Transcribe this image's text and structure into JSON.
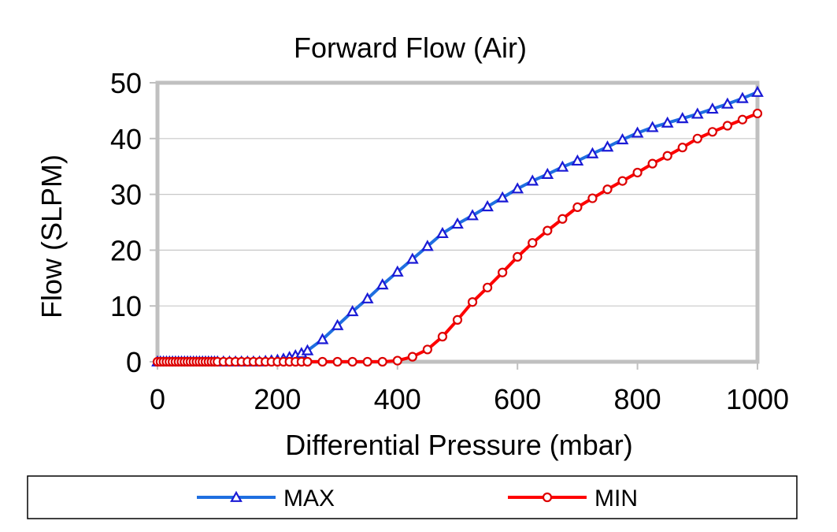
{
  "chart_data": {
    "type": "line",
    "title": "Forward Flow (Air)",
    "xlabel": "Differential Pressure (mbar)",
    "ylabel": "Flow (SLPM)",
    "xlim": [
      0,
      1000
    ],
    "ylim": [
      0,
      50
    ],
    "xticks": [
      "0",
      "200",
      "400",
      "600",
      "800",
      "1000"
    ],
    "yticks": [
      "0",
      "10",
      "20",
      "30",
      "40",
      "50"
    ],
    "grid": true,
    "legend_position": "bottom",
    "series": [
      {
        "name": "MAX",
        "color": "#1f6fe0",
        "marker": "triangle",
        "marker_color": "#1a1ad6",
        "x": [
          0,
          5,
          10,
          15,
          20,
          25,
          30,
          35,
          40,
          45,
          50,
          55,
          60,
          65,
          70,
          75,
          80,
          85,
          90,
          95,
          100,
          110,
          120,
          130,
          140,
          150,
          160,
          170,
          180,
          190,
          200,
          210,
          220,
          230,
          240,
          250,
          275,
          300,
          325,
          350,
          375,
          400,
          425,
          450,
          475,
          500,
          525,
          550,
          575,
          600,
          625,
          650,
          675,
          700,
          725,
          750,
          775,
          800,
          825,
          850,
          875,
          900,
          925,
          950,
          975,
          1000
        ],
        "y": [
          0,
          0,
          0,
          0,
          0,
          0,
          0,
          0,
          0,
          0,
          0,
          0,
          0,
          0,
          0,
          0,
          0,
          0,
          0,
          0,
          0,
          0,
          0,
          0,
          0,
          0,
          0,
          0,
          0.1,
          0.2,
          0.3,
          0.5,
          0.8,
          1.1,
          1.5,
          2.0,
          4.0,
          6.5,
          9.0,
          11.3,
          13.8,
          16.1,
          18.4,
          20.7,
          23.0,
          24.7,
          26.2,
          27.8,
          29.4,
          31.0,
          32.4,
          33.6,
          34.9,
          36.0,
          37.3,
          38.5,
          39.8,
          41.0,
          42.0,
          42.8,
          43.6,
          44.4,
          45.3,
          46.2,
          47.2,
          48.3
        ]
      },
      {
        "name": "MIN",
        "color": "#ff0000",
        "marker": "circle",
        "marker_color": "#dd0000",
        "x": [
          0,
          5,
          10,
          15,
          20,
          25,
          30,
          35,
          40,
          45,
          50,
          55,
          60,
          65,
          70,
          75,
          80,
          85,
          90,
          95,
          100,
          110,
          120,
          130,
          140,
          150,
          160,
          170,
          180,
          190,
          200,
          210,
          220,
          230,
          240,
          250,
          275,
          300,
          325,
          350,
          375,
          400,
          425,
          450,
          475,
          500,
          525,
          550,
          575,
          600,
          625,
          650,
          675,
          700,
          725,
          750,
          775,
          800,
          825,
          850,
          875,
          900,
          925,
          950,
          975,
          1000
        ],
        "y": [
          0,
          0,
          0,
          0,
          0,
          0,
          0,
          0,
          0,
          0,
          0,
          0,
          0,
          0,
          0,
          0,
          0,
          0,
          0,
          0,
          0,
          0,
          0,
          0,
          0,
          0,
          0,
          0,
          0,
          0,
          0,
          0,
          0,
          0,
          0,
          0,
          0,
          0,
          0,
          0,
          0,
          0.2,
          0.9,
          2.2,
          4.5,
          7.5,
          10.7,
          13.3,
          16.0,
          18.8,
          21.3,
          23.5,
          25.6,
          27.7,
          29.3,
          30.9,
          32.4,
          33.9,
          35.5,
          36.9,
          38.4,
          40.0,
          41.2,
          42.3,
          43.4,
          44.5
        ]
      }
    ]
  }
}
